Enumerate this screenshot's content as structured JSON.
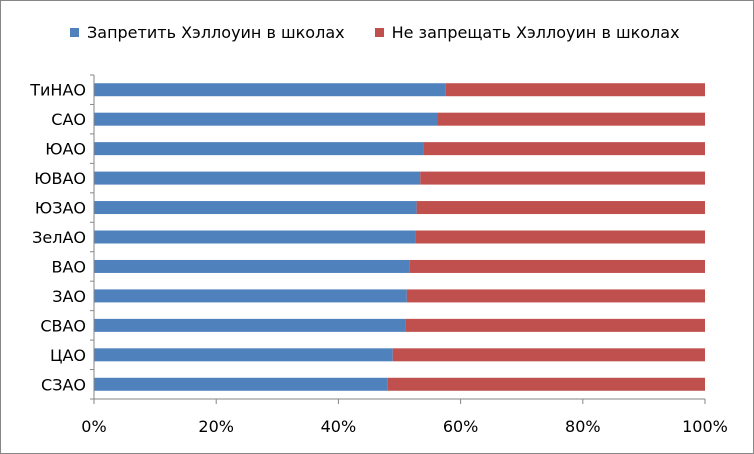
{
  "chart_data": {
    "type": "bar",
    "orientation": "horizontal",
    "stacked": "percent",
    "categories": [
      "ТиНАО",
      "САО",
      "ЮАО",
      "ЮВАО",
      "ЮЗАО",
      "ЗелАО",
      "ВАО",
      "ЗАО",
      "СВАО",
      "ЦАО",
      "СЗАО"
    ],
    "series": [
      {
        "name": "Запретить Хэллоуин в школах",
        "color": "#4F81BD",
        "values": [
          57.5,
          56.3,
          54.0,
          53.4,
          52.8,
          52.6,
          51.7,
          51.2,
          51.0,
          48.9,
          48.0
        ]
      },
      {
        "name": "Не запрещать Хэллоуин в школах",
        "color": "#C0504D",
        "values": [
          42.5,
          43.7,
          46.0,
          46.6,
          47.2,
          47.4,
          48.3,
          48.8,
          49.0,
          51.1,
          52.0
        ]
      }
    ],
    "x_tick_labels": [
      "0%",
      "20%",
      "40%",
      "60%",
      "80%",
      "100%"
    ],
    "xlim": [
      0,
      100
    ],
    "grid": false,
    "legend_position": "top"
  }
}
